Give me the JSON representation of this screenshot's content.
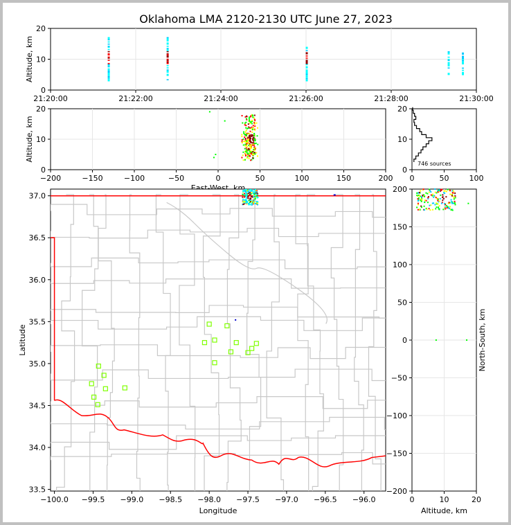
{
  "title": "Oklahoma LMA 2120-2130 UTC June 27, 2023",
  "colors": {
    "county": "#c8c8c8",
    "state": "#ff0000",
    "station": "#7fff00",
    "grid": "#e6e6e6",
    "frame": "#c0c0c0"
  },
  "chart_data": [
    {
      "id": "time_height",
      "type": "scatter",
      "xlabel": "",
      "ylabel": "Altitude, km",
      "ylim": [
        0,
        20
      ],
      "xlim": [
        "21:20:00",
        "21:30:00"
      ],
      "x_ticks": [
        "21:20:00",
        "21:22:00",
        "21:24:00",
        "21:26:00",
        "21:28:00",
        "21:30:00"
      ],
      "y_ticks": [
        "0",
        "10",
        "20"
      ],
      "grid": true,
      "bursts": [
        {
          "time": "21:21:22",
          "alt_min": 3,
          "alt_max": 17
        },
        {
          "time": "21:22:45",
          "alt_min": 3,
          "alt_max": 17
        },
        {
          "time": "21:26:01",
          "alt_min": 3,
          "alt_max": 14
        },
        {
          "time": "21:29:21",
          "alt_min": 4,
          "alt_max": 13
        },
        {
          "time": "21:29:41",
          "alt_min": 5,
          "alt_max": 12
        }
      ]
    },
    {
      "id": "ew_alt",
      "type": "scatter",
      "xlabel": "East-West, km",
      "ylabel": "Altitude, km",
      "xlim": [
        -200,
        200
      ],
      "ylim": [
        0,
        20
      ],
      "x_ticks": [
        "−200",
        "−150",
        "−100",
        "−50",
        "0",
        "50",
        "100",
        "150",
        "200"
      ],
      "y_ticks": [
        "0",
        "10",
        "20"
      ],
      "grid": true,
      "cluster": {
        "x_min": 28,
        "x_max": 48,
        "alt_min": 3,
        "alt_max": 18
      }
    },
    {
      "id": "alt_hist",
      "type": "line",
      "xlim": [
        0,
        100
      ],
      "ylim": [
        0,
        20
      ],
      "x_ticks": [
        "0",
        "50",
        "100"
      ],
      "y_ticks": [
        "0",
        "10",
        "20"
      ],
      "annotation": "746 sources",
      "altitude": [
        3,
        4,
        5,
        6,
        7,
        8,
        9,
        10,
        11,
        12,
        13,
        14,
        15,
        16,
        17,
        18,
        19,
        20
      ],
      "count": [
        3,
        6,
        10,
        14,
        17,
        22,
        26,
        31,
        22,
        15,
        12,
        7,
        4,
        3,
        6,
        4,
        2,
        1
      ]
    },
    {
      "id": "plan_view",
      "type": "scatter",
      "xlabel": "Longitude",
      "ylabel": "Latitude",
      "xlim": [
        -100.05,
        -95.72
      ],
      "ylim": [
        33.48,
        37.08
      ],
      "x_ticks": [
        "−100.0",
        "−99.5",
        "−99.0",
        "−98.5",
        "−98.0",
        "−97.5",
        "−97.0",
        "−96.5",
        "−96.0"
      ],
      "y_ticks": [
        "33.5",
        "34.0",
        "34.5",
        "35.0",
        "35.5",
        "36.0",
        "36.5",
        "37.0"
      ],
      "stations": [
        {
          "lon": -99.43,
          "lat": 34.97
        },
        {
          "lon": -99.36,
          "lat": 34.86
        },
        {
          "lon": -99.52,
          "lat": 34.76
        },
        {
          "lon": -99.34,
          "lat": 34.7
        },
        {
          "lon": -99.09,
          "lat": 34.71
        },
        {
          "lon": -99.49,
          "lat": 34.6
        },
        {
          "lon": -99.44,
          "lat": 34.51
        },
        {
          "lon": -98.0,
          "lat": 35.47
        },
        {
          "lon": -97.77,
          "lat": 35.45
        },
        {
          "lon": -97.93,
          "lat": 35.28
        },
        {
          "lon": -98.06,
          "lat": 35.25
        },
        {
          "lon": -97.65,
          "lat": 35.25
        },
        {
          "lon": -97.39,
          "lat": 35.24
        },
        {
          "lon": -97.45,
          "lat": 35.18
        },
        {
          "lon": -97.72,
          "lat": 35.14
        },
        {
          "lon": -97.5,
          "lat": 35.13
        },
        {
          "lon": -97.93,
          "lat": 35.01
        }
      ],
      "cluster": {
        "lon_min": -97.58,
        "lon_max": -97.36,
        "lat_min": 36.89,
        "lat_max": 37.08
      }
    },
    {
      "id": "alt_ns",
      "type": "scatter",
      "xlabel": "Altitude, km",
      "ylabel": "North-South, km",
      "xlim": [
        0,
        20
      ],
      "ylim": [
        -200,
        200
      ],
      "x_ticks": [
        "0",
        "10",
        "20"
      ],
      "y_ticks": [
        "−200",
        "−150",
        "−100",
        "−50",
        "0",
        "50",
        "100",
        "150",
        "200"
      ],
      "grid": true,
      "cluster": {
        "alt_min": 3,
        "alt_max": 18,
        "ns_min": 172,
        "ns_max": 200
      }
    }
  ]
}
